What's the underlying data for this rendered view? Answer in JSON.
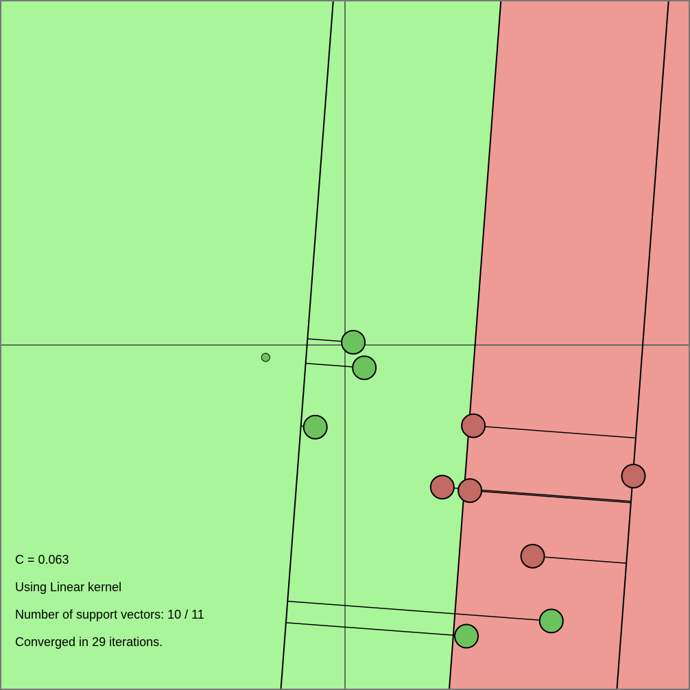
{
  "info": {
    "c_line": "C = 0.063",
    "kernel_line": "Using Linear kernel",
    "sv_line": "Number of support vectors: 10 / 11",
    "converged_line": "Converged in 29 iterations."
  },
  "colors": {
    "positive_region": "#a9f59a",
    "negative_region": "#ee9b95",
    "positive_point": "#6cc35e",
    "negative_point": "#c26a64",
    "axis_line": "#5f6f5f",
    "boundary_line": "#000000",
    "frame": "#777777"
  },
  "chart_data": {
    "type": "scatter",
    "xlim": [
      -5,
      5
    ],
    "ylim": [
      -5,
      5
    ],
    "grid": false,
    "legend": "none",
    "decision_boundary": {
      "top_x": 2.26,
      "bottom_x": 1.51
    },
    "margin_minus": {
      "top_x": -0.17,
      "bottom_x": -0.93
    },
    "margin_plus": {
      "top_x": 4.69,
      "bottom_x": 3.94
    },
    "points": [
      {
        "label": 1,
        "x": 0.12,
        "y": 0.04,
        "support": true,
        "fill": "#6cc35e"
      },
      {
        "label": 1,
        "x": 0.28,
        "y": -0.33,
        "support": true,
        "fill": "#6cc35e"
      },
      {
        "label": 1,
        "x": -1.15,
        "y": -0.18,
        "support": false,
        "fill": "#6cc35e"
      },
      {
        "label": 1,
        "x": -0.43,
        "y": -1.19,
        "support": true,
        "fill": "#6cc35e"
      },
      {
        "label": 1,
        "x": 2.99,
        "y": -4.0,
        "support": true,
        "fill": "#6cc35e"
      },
      {
        "label": 1,
        "x": 1.76,
        "y": -4.22,
        "support": true,
        "fill": "#6cc35e"
      },
      {
        "label": -1,
        "x": 1.86,
        "y": -1.17,
        "support": true,
        "fill": "#c26a64"
      },
      {
        "label": -1,
        "x": 4.18,
        "y": -1.9,
        "support": true,
        "fill": "#c26a64"
      },
      {
        "label": -1,
        "x": 1.41,
        "y": -2.06,
        "support": true,
        "fill": "#c26a64"
      },
      {
        "label": -1,
        "x": 1.81,
        "y": -2.11,
        "support": true,
        "fill": "#c26a64"
      },
      {
        "label": -1,
        "x": 2.72,
        "y": -3.06,
        "support": true,
        "fill": "#c26a64"
      }
    ]
  }
}
